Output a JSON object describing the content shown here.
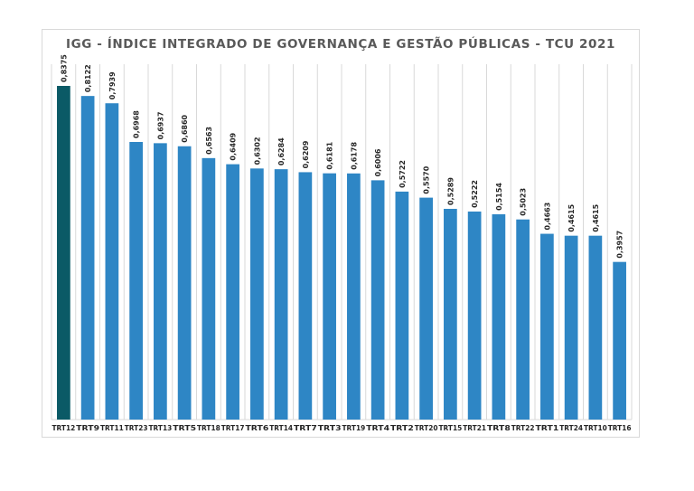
{
  "chart_data": {
    "type": "bar",
    "title": "IGG - ÍNDICE INTEGRADO DE GOVERNANÇA E GESTÃO PÚBLICAS - TCU 2021",
    "xlabel": "",
    "ylabel": "",
    "ylim": [
      0,
      0.8375
    ],
    "grid": "vertical",
    "legend": "none",
    "categories": [
      "TRT12",
      "TRT9",
      "TRT11",
      "TRT23",
      "TRT13",
      "TRT5",
      "TRT18",
      "TRT17",
      "TRT6",
      "TRT14",
      "TRT7",
      "TRT3",
      "TRT19",
      "TRT4",
      "TRT2",
      "TRT20",
      "TRT15",
      "TRT21",
      "TRT8",
      "TRT22",
      "TRT1",
      "TRT24",
      "TRT10",
      "TRT16"
    ],
    "values": [
      0.8375,
      0.8122,
      0.7939,
      0.6968,
      0.6937,
      0.686,
      0.6563,
      0.6409,
      0.6302,
      0.6284,
      0.6209,
      0.6181,
      0.6178,
      0.6006,
      0.5722,
      0.557,
      0.5289,
      0.5222,
      0.5154,
      0.5023,
      0.4663,
      0.4615,
      0.4615,
      0.3957
    ],
    "data_labels": [
      "0,8375",
      "0,8122",
      "0,7939",
      "0,6968",
      "0,6937",
      "0,6860",
      "0,6563",
      "0,6409",
      "0,6302",
      "0,6284",
      "0,6209",
      "0,6181",
      "0,6178",
      "0,6006",
      "0,5722",
      "0,5570",
      "0,5289",
      "0,5222",
      "0,5154",
      "0,5023",
      "0,4663",
      "0,4615",
      "0,4615",
      "0,3957"
    ],
    "colors": {
      "highlight": "#0b5a66",
      "bar": "#2e86c5",
      "grid": "#d9d9d9",
      "title": "#595959",
      "label": "#262626"
    }
  }
}
